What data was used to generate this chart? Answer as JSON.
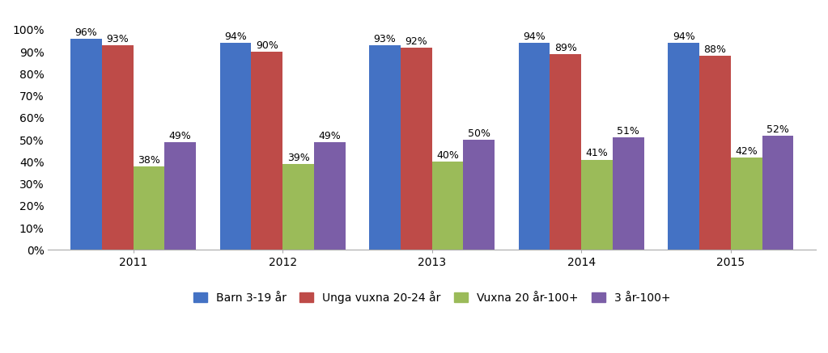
{
  "years": [
    "2011",
    "2012",
    "2013",
    "2014",
    "2015"
  ],
  "series": [
    {
      "label": "Barn 3-19 år",
      "values": [
        0.96,
        0.94,
        0.93,
        0.94,
        0.94
      ],
      "color": "#4472C4"
    },
    {
      "label": "Unga vuxna 20-24 år",
      "values": [
        0.93,
        0.9,
        0.92,
        0.89,
        0.88
      ],
      "color": "#BE4B48"
    },
    {
      "label": "Vuxna 20 år-100+",
      "values": [
        0.38,
        0.39,
        0.4,
        0.41,
        0.42
      ],
      "color": "#9BBB59"
    },
    {
      "label": "3 år-100+",
      "values": [
        0.49,
        0.49,
        0.5,
        0.51,
        0.52
      ],
      "color": "#7B5EA7"
    }
  ],
  "ylim": [
    0,
    1.08
  ],
  "yticks": [
    0.0,
    0.1,
    0.2,
    0.3,
    0.4,
    0.5,
    0.6,
    0.7,
    0.8,
    0.9,
    1.0
  ],
  "ytick_labels": [
    "0%",
    "10%",
    "20%",
    "30%",
    "40%",
    "50%",
    "60%",
    "70%",
    "80%",
    "90%",
    "100%"
  ],
  "bar_width": 0.21,
  "label_fontsize": 9,
  "tick_fontsize": 10,
  "legend_fontsize": 10,
  "background_color": "#FFFFFF",
  "figure_bg": "#FFFFFF"
}
